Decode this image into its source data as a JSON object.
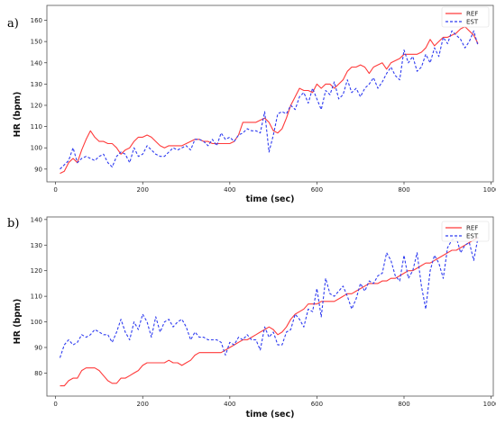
{
  "panels": [
    "a)",
    "b)"
  ],
  "chart_data": [
    {
      "type": "line",
      "panel": "a)",
      "xlabel": "time (sec)",
      "ylabel": "HR (bpm)",
      "xlim": [
        -20,
        1005
      ],
      "ylim": [
        84,
        167
      ],
      "xticks": [
        0,
        200,
        400,
        600,
        800,
        1000
      ],
      "yticks": [
        90,
        100,
        110,
        120,
        130,
        140,
        150,
        160
      ],
      "grid": false,
      "legend": "top-right",
      "series": [
        {
          "name": "REF",
          "color": "#ff3b3b",
          "style": "solid",
          "x": [
            10,
            20,
            30,
            40,
            50,
            60,
            70,
            80,
            90,
            100,
            110,
            120,
            130,
            140,
            150,
            160,
            170,
            180,
            190,
            200,
            210,
            220,
            230,
            240,
            250,
            260,
            270,
            280,
            290,
            300,
            310,
            320,
            330,
            340,
            350,
            360,
            370,
            380,
            390,
            400,
            410,
            420,
            430,
            440,
            450,
            460,
            470,
            480,
            490,
            500,
            510,
            520,
            530,
            540,
            550,
            560,
            570,
            580,
            590,
            600,
            610,
            620,
            630,
            640,
            650,
            660,
            670,
            680,
            690,
            700,
            710,
            720,
            730,
            740,
            750,
            760,
            770,
            780,
            790,
            800,
            810,
            820,
            830,
            840,
            850,
            860,
            870,
            880,
            890,
            900,
            910,
            920,
            930,
            940,
            950,
            960,
            970
          ],
          "y": [
            88,
            89,
            93,
            95,
            93,
            99,
            104,
            108,
            105,
            103,
            103,
            102,
            102,
            100,
            97,
            99,
            100,
            103,
            105,
            105,
            106,
            105,
            103,
            101,
            100,
            101,
            101,
            101,
            101,
            102,
            103,
            104,
            104,
            103,
            103,
            102,
            102,
            102,
            102,
            102,
            103,
            106,
            112,
            112,
            112,
            112,
            113,
            114,
            112,
            108,
            107,
            109,
            114,
            120,
            124,
            128,
            127,
            127,
            126,
            130,
            128,
            130,
            130,
            128,
            130,
            132,
            136,
            138,
            138,
            139,
            138,
            135,
            138,
            139,
            140,
            137,
            140,
            141,
            142,
            144,
            144,
            144,
            144,
            145,
            147,
            151,
            148,
            150,
            152,
            152,
            153,
            154,
            156,
            157,
            155,
            153,
            149
          ]
        },
        {
          "name": "EST",
          "color": "#2f3cf0",
          "style": "dashed",
          "x": [
            10,
            20,
            30,
            40,
            50,
            60,
            70,
            80,
            90,
            100,
            110,
            120,
            130,
            140,
            150,
            160,
            170,
            180,
            190,
            200,
            210,
            220,
            230,
            240,
            250,
            260,
            270,
            280,
            290,
            300,
            310,
            320,
            330,
            340,
            350,
            360,
            370,
            380,
            390,
            400,
            410,
            420,
            430,
            440,
            450,
            460,
            470,
            480,
            490,
            500,
            510,
            520,
            530,
            540,
            550,
            560,
            570,
            580,
            590,
            600,
            610,
            620,
            630,
            640,
            650,
            660,
            670,
            680,
            690,
            700,
            710,
            720,
            730,
            740,
            750,
            760,
            770,
            780,
            790,
            800,
            810,
            820,
            830,
            840,
            850,
            860,
            870,
            880,
            890,
            900,
            910,
            920,
            930,
            940,
            950,
            960,
            970
          ],
          "y": [
            90,
            92,
            94,
            100,
            93,
            95,
            96,
            95,
            94,
            96,
            97,
            93,
            91,
            96,
            98,
            97,
            93,
            100,
            96,
            97,
            101,
            99,
            97,
            96,
            96,
            98,
            100,
            99,
            100,
            101,
            99,
            104,
            104,
            103,
            101,
            104,
            101,
            107,
            104,
            105,
            103,
            106,
            107,
            109,
            108,
            108,
            107,
            117,
            98,
            106,
            116,
            117,
            116,
            120,
            118,
            124,
            126,
            121,
            128,
            123,
            118,
            127,
            125,
            131,
            123,
            125,
            132,
            126,
            128,
            124,
            128,
            130,
            133,
            128,
            131,
            135,
            138,
            134,
            132,
            146,
            140,
            143,
            136,
            138,
            144,
            140,
            147,
            143,
            152,
            149,
            155,
            153,
            151,
            147,
            150,
            155,
            148
          ]
        }
      ]
    },
    {
      "type": "line",
      "panel": "b)",
      "xlabel": "time (sec)",
      "ylabel": "HR (bpm)",
      "xlim": [
        -20,
        1005
      ],
      "ylim": [
        71,
        141
      ],
      "xticks": [
        0,
        200,
        400,
        600,
        800,
        1000
      ],
      "yticks": [
        80,
        90,
        100,
        110,
        120,
        130,
        140
      ],
      "grid": false,
      "legend": "top-right",
      "series": [
        {
          "name": "REF",
          "color": "#ff3b3b",
          "style": "solid",
          "x": [
            10,
            20,
            30,
            40,
            50,
            60,
            70,
            80,
            90,
            100,
            110,
            120,
            130,
            140,
            150,
            160,
            170,
            180,
            190,
            200,
            210,
            220,
            230,
            240,
            250,
            260,
            270,
            280,
            290,
            300,
            310,
            320,
            330,
            340,
            350,
            360,
            370,
            380,
            390,
            400,
            410,
            420,
            430,
            440,
            450,
            460,
            470,
            480,
            490,
            500,
            510,
            520,
            530,
            540,
            550,
            560,
            570,
            580,
            590,
            600,
            610,
            620,
            630,
            640,
            650,
            660,
            670,
            680,
            690,
            700,
            710,
            720,
            730,
            740,
            750,
            760,
            770,
            780,
            790,
            800,
            810,
            820,
            830,
            840,
            850,
            860,
            870,
            880,
            890,
            900,
            910,
            920,
            930,
            940,
            950,
            960,
            970
          ],
          "y": [
            75,
            75,
            77,
            78,
            78,
            81,
            82,
            82,
            82,
            81,
            79,
            77,
            76,
            76,
            78,
            78,
            79,
            80,
            81,
            83,
            84,
            84,
            84,
            84,
            84,
            85,
            84,
            84,
            83,
            84,
            85,
            87,
            88,
            88,
            88,
            88,
            88,
            88,
            89,
            90,
            91,
            92,
            93,
            93,
            94,
            95,
            96,
            97,
            98,
            97,
            95,
            96,
            98,
            101,
            103,
            104,
            105,
            107,
            107,
            107,
            108,
            108,
            108,
            108,
            109,
            110,
            111,
            111,
            112,
            113,
            114,
            115,
            115,
            115,
            116,
            116,
            117,
            117,
            118,
            119,
            120,
            120,
            121,
            122,
            123,
            123,
            124,
            125,
            126,
            127,
            128,
            128,
            129,
            130,
            131,
            132,
            133
          ]
        },
        {
          "name": "EST",
          "color": "#2f3cf0",
          "style": "dashed",
          "x": [
            10,
            20,
            30,
            40,
            50,
            60,
            70,
            80,
            90,
            100,
            110,
            120,
            130,
            140,
            150,
            160,
            170,
            180,
            190,
            200,
            210,
            220,
            230,
            240,
            250,
            260,
            270,
            280,
            290,
            300,
            310,
            320,
            330,
            340,
            350,
            360,
            370,
            380,
            390,
            400,
            410,
            420,
            430,
            440,
            450,
            460,
            470,
            480,
            490,
            500,
            510,
            520,
            530,
            540,
            550,
            560,
            570,
            580,
            590,
            600,
            610,
            620,
            630,
            640,
            650,
            660,
            670,
            680,
            690,
            700,
            710,
            720,
            730,
            740,
            750,
            760,
            770,
            780,
            790,
            800,
            810,
            820,
            830,
            840,
            850,
            860,
            870,
            880,
            890,
            900,
            910,
            920,
            930,
            940,
            950,
            960,
            970
          ],
          "y": [
            86,
            91,
            93,
            91,
            92,
            95,
            94,
            95,
            97,
            96,
            95,
            95,
            92,
            96,
            101,
            96,
            93,
            100,
            97,
            103,
            100,
            94,
            102,
            96,
            100,
            101,
            98,
            100,
            101,
            98,
            93,
            96,
            94,
            94,
            93,
            93,
            93,
            92,
            87,
            92,
            91,
            94,
            93,
            95,
            93,
            93,
            89,
            98,
            94,
            96,
            91,
            91,
            96,
            97,
            103,
            101,
            98,
            105,
            104,
            113,
            102,
            117,
            111,
            110,
            112,
            114,
            110,
            105,
            109,
            115,
            112,
            116,
            115,
            118,
            119,
            127,
            124,
            118,
            116,
            126,
            117,
            120,
            127,
            114,
            105,
            120,
            126,
            123,
            117,
            129,
            132,
            133,
            127,
            130,
            131,
            124,
            133
          ]
        }
      ]
    }
  ]
}
